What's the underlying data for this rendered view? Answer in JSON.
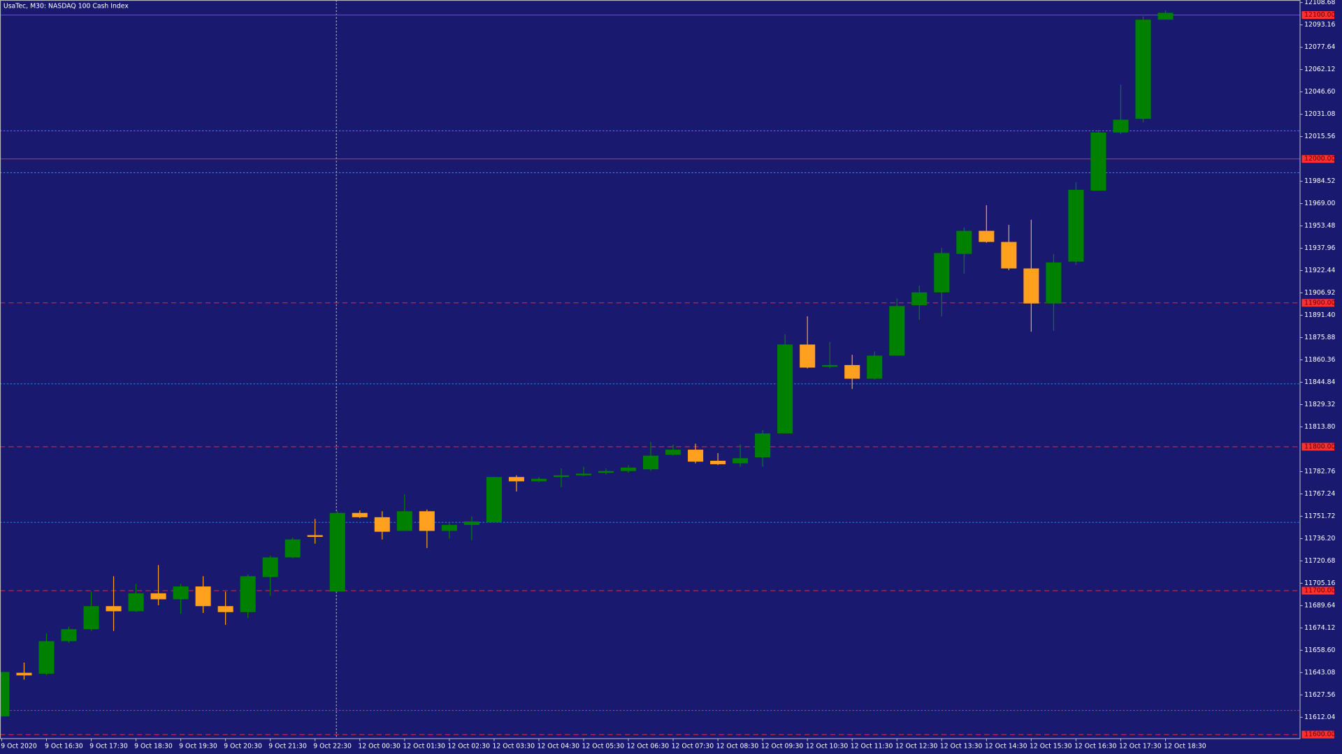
{
  "chart_data": {
    "type": "candlestick",
    "title": "UsaTec, M30:  NASDAQ 100 Cash Index",
    "categories": [
      "9 Oct 2020",
      null,
      "9 Oct 16:30",
      null,
      "9 Oct 17:30",
      null,
      "9 Oct 18:30",
      null,
      "9 Oct 19:30",
      null,
      "9 Oct 20:30",
      null,
      "9 Oct 21:30",
      null,
      "9 Oct 22:30",
      null,
      "12 Oct 00:30",
      null,
      "12 Oct 01:30",
      null,
      "12 Oct 02:30",
      null,
      "12 Oct 03:30",
      null,
      "12 Oct 04:30",
      null,
      "12 Oct 05:30",
      null,
      "12 Oct 06:30",
      null,
      "12 Oct 07:30",
      null,
      "12 Oct 08:30",
      null,
      "12 Oct 09:30",
      null,
      "12 Oct 10:30",
      null,
      "12 Oct 11:30",
      null,
      "12 Oct 12:30",
      null,
      "12 Oct 13:30",
      null,
      "12 Oct 14:30",
      null,
      "12 Oct 15:30",
      null,
      "12 Oct 16:30",
      null,
      "12 Oct 17:30",
      null,
      "12 Oct 18:30"
    ],
    "open": [
      11612.63,
      11642.93,
      11642.33,
      11664.91,
      11673.22,
      11689.26,
      11685.7,
      11698.18,
      11694.02,
      11702.93,
      11689.26,
      11685.11,
      11709.46,
      11723.13,
      11738.57,
      11699.36,
      11754.02,
      11751.05,
      11741.54,
      11755.21,
      11741.54,
      11745.7,
      11747.48,
      11778.97,
      11776.0,
      11778.97,
      11780.16,
      11781.94,
      11783.13,
      11784.32,
      11794.41,
      11797.98,
      11790.26,
      11788.47,
      11792.63,
      11809.27,
      11871.05,
      11855.6,
      11856.79,
      11847.29,
      11863.33,
      11898.38,
      11907.29,
      11934.02,
      11950.06,
      11942.34,
      11923.92,
      11899.57,
      11928.67,
      11977.98,
      12018.38,
      12027.88,
      12096.8
    ],
    "high": [
      11643.52,
      11650.06,
      11670.25,
      11675.01,
      11699.36,
      11710.06,
      11704.71,
      11717.78,
      11704.71,
      11710.06,
      11699.36,
      11711.25,
      11724.31,
      11736.79,
      11749.86,
      11755.21,
      11755.8,
      11755.21,
      11767.09,
      11756.39,
      11746.89,
      11751.64,
      11778.97,
      11780.16,
      11778.97,
      11784.91,
      11786.1,
      11784.91,
      11787.29,
      11803.33,
      11801.54,
      11802.14,
      11795.6,
      11801.54,
      11811.64,
      11878.18,
      11890.65,
      11872.83,
      11863.92,
      11866.3,
      11903.13,
      11912.04,
      11938.18,
      11952.44,
      11967.88,
      11954.22,
      11957.78,
      11934.02,
      11983.92,
      12020.16,
      12051.65,
      12099.17,
      12103.33
    ],
    "low": [
      11612.63,
      11638.17,
      11641.14,
      11663.72,
      11672.04,
      11672.04,
      11685.11,
      11689.86,
      11683.92,
      11684.51,
      11676.19,
      11680.95,
      11696.39,
      11722.53,
      11732.63,
      11699.36,
      11750.45,
      11735.6,
      11741.54,
      11729.66,
      11736.2,
      11735.01,
      11747.48,
      11768.87,
      11775.4,
      11771.84,
      11779.56,
      11780.75,
      11781.94,
      11783.13,
      11793.82,
      11788.47,
      11787.29,
      11786.1,
      11786.1,
      11809.27,
      11854.42,
      11854.42,
      11840.16,
      11846.69,
      11863.33,
      11888.28,
      11890.65,
      11920.36,
      11941.74,
      11922.73,
      11879.96,
      11880.55,
      11926.3,
      11977.98,
      12017.19,
      12025.51,
      12096.8
    ],
    "close": [
      11643.52,
      11641.14,
      11664.91,
      11673.22,
      11689.26,
      11685.7,
      11698.18,
      11694.02,
      11702.93,
      11689.26,
      11685.11,
      11710.06,
      11723.13,
      11735.6,
      11737.38,
      11754.02,
      11751.05,
      11740.95,
      11755.21,
      11741.54,
      11745.7,
      11748.08,
      11778.97,
      11776.0,
      11777.78,
      11780.16,
      11781.35,
      11783.13,
      11785.5,
      11793.82,
      11797.98,
      11789.66,
      11787.88,
      11792.04,
      11809.27,
      11871.05,
      11855.01,
      11856.79,
      11847.29,
      11863.33,
      11897.78,
      11907.29,
      11934.62,
      11950.06,
      11942.34,
      11923.92,
      11899.57,
      11928.08,
      11978.58,
      12018.38,
      12027.29,
      12096.8,
      12101.55
    ],
    "up_color": "#008000",
    "down_color": "#ffa01e",
    "background": "#191970",
    "ylim": [
      11597.2,
      12110.46
    ],
    "yticks": [
      12108.68,
      12093.16,
      12077.64,
      12062.12,
      {
        "value": 12046.6,
        "label": "12046.60"
      },
      12031.08,
      12015.56,
      11984.52,
      {
        "value": 11969,
        "label": "11969.00"
      },
      11953.48,
      11937.96,
      11922.44,
      11906.92,
      {
        "value": 11891.4,
        "label": "11891.40"
      },
      11875.88,
      11860.36,
      11844.84,
      11829.32,
      {
        "value": 11813.8,
        "label": "11813.80"
      },
      11782.76,
      11767.24,
      11751.72,
      {
        "value": 11736.2,
        "label": "11736.20"
      },
      11720.68,
      11705.16,
      11689.64,
      11674.12,
      {
        "value": 11658.6,
        "label": "11658.60"
      },
      11643.08,
      11627.56,
      11612.04
    ],
    "levels": [
      {
        "value": 12100,
        "label": "12100.00",
        "style": "solid",
        "color": "#ff3030"
      },
      {
        "value": 12000,
        "label": "12000.00",
        "style": "solid",
        "color": "#ff3030"
      },
      {
        "value": 11900,
        "label": "11900.00",
        "style": "dashed",
        "color": "#ff3030"
      },
      {
        "value": 11800,
        "label": "11800.00",
        "style": "dashed",
        "color": "#ff3030"
      },
      {
        "value": 11700,
        "label": "11700.00",
        "style": "dashed",
        "color": "#ff3030"
      },
      {
        "value": 11600,
        "label": "11600.00",
        "style": "dashed",
        "color": "#ff3030"
      },
      {
        "value": 12019.57,
        "style": "dotted",
        "color": "#1e9bff"
      },
      {
        "value": 11990.46,
        "style": "dotted",
        "color": "#1e9bff"
      },
      {
        "value": 11843.72,
        "style": "dotted",
        "color": "#1e9bff"
      },
      {
        "value": 11747.48,
        "style": "dotted",
        "color": "#1e9bff"
      },
      {
        "value": 11616.78,
        "style": "dotted",
        "color": "#ff3030"
      }
    ],
    "grid": false
  }
}
